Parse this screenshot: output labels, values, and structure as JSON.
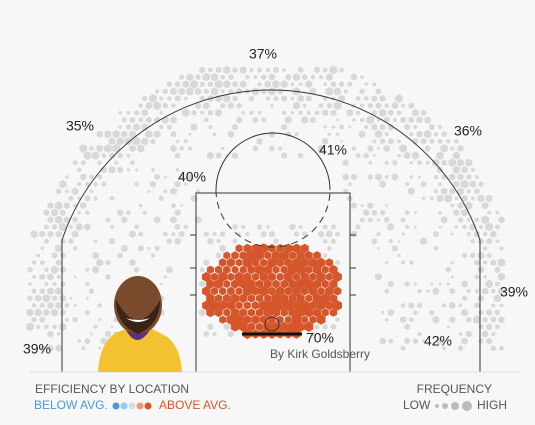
{
  "chart_data": {
    "type": "shot-chart",
    "values": [
      37,
      35,
      36,
      41,
      40,
      39,
      39,
      42,
      70
    ],
    "value_labels": [
      "37%",
      "35%",
      "36%",
      "41%",
      "40%",
      "39%",
      "39%",
      "42%",
      "70%"
    ],
    "credit": "By Kirk Goldsberry",
    "legend": {
      "efficiency_title": "EFFICIENCY BY LOCATION",
      "below": "BELOW AVG.",
      "above": "ABOVE AVG.",
      "frequency_title": "FREQUENCY",
      "low": "LOW",
      "high": "HIGH"
    }
  }
}
